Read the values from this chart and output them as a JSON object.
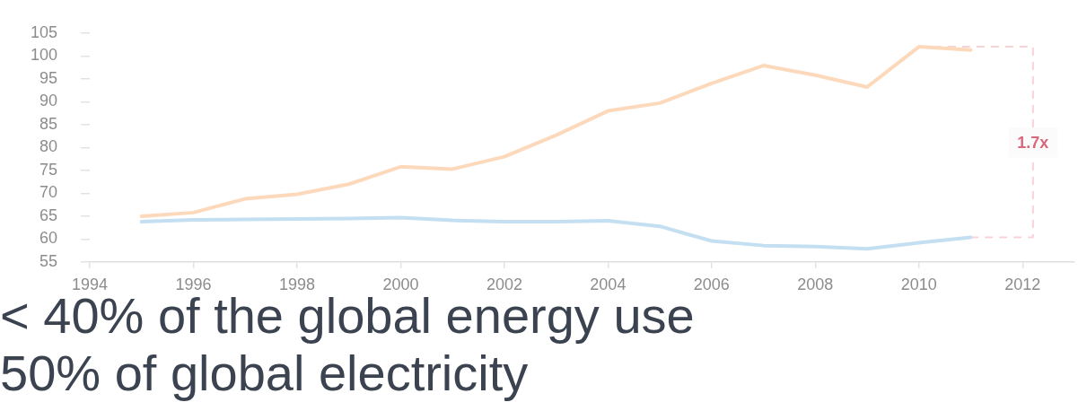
{
  "chart_data": {
    "type": "line",
    "x": [
      1995,
      1996,
      1997,
      1998,
      1999,
      2000,
      2001,
      2002,
      2003,
      2004,
      2005,
      2006,
      2007,
      2008,
      2009,
      2010,
      2011
    ],
    "series": [
      {
        "color": "#fdd9bc",
        "values": [
          65,
          65.8,
          68.8,
          69.8,
          72,
          75.8,
          75.3,
          78,
          82.7,
          88,
          89.7,
          94,
          97.9,
          95.8,
          93.2,
          102,
          101.3
        ]
      },
      {
        "color": "#c4dff2",
        "values": [
          63.8,
          64.2,
          64.3,
          64.4,
          64.5,
          64.7,
          64.1,
          63.8,
          63.8,
          64,
          62.8,
          59.6,
          58.6,
          58.4,
          57.9,
          59.2,
          60.4
        ]
      },
      {
        "color": "#f8d3d8",
        "line_style": "dashed",
        "x": [
          2010,
          2012.2,
          2012.2,
          2011
        ],
        "values": [
          102,
          102,
          60.4,
          60.4
        ]
      }
    ],
    "xlim": [
      1994,
      2013
    ],
    "xticks": [
      1994,
      1996,
      1998,
      2000,
      2002,
      2004,
      2006,
      2008,
      2010,
      2012
    ],
    "ylim": [
      55,
      105
    ],
    "yticks": [
      55,
      60,
      65,
      70,
      75,
      80,
      85,
      90,
      95,
      100,
      105
    ],
    "marker": "none",
    "annotations": [
      {
        "text": "1.7x",
        "x": 2012.2,
        "y": 81
      },
      "< 40% of the global energy use",
      "50% of global electricity"
    ]
  }
}
